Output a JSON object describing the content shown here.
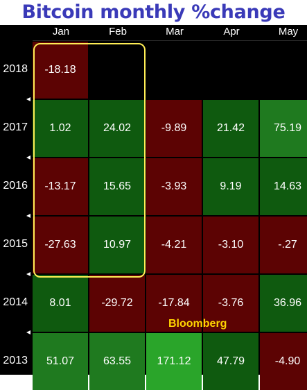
{
  "chart_data": {
    "type": "heatmap",
    "title": "Bitcoin monthly %change",
    "columns": [
      "Jan",
      "Feb",
      "Mar",
      "Apr",
      "May"
    ],
    "rows": [
      "2018",
      "2017",
      "2016",
      "2015",
      "2014",
      "2013"
    ],
    "values": [
      [
        "-18.18",
        null,
        null,
        null,
        null
      ],
      [
        "1.02",
        "24.02",
        "-9.89",
        "21.42",
        "75.19"
      ],
      [
        "-13.17",
        "15.65",
        "-3.93",
        "9.19",
        "14.63"
      ],
      [
        "-27.63",
        "10.97",
        "-4.21",
        "-3.10",
        "-.27"
      ],
      [
        "8.01",
        "-29.72",
        "-17.84",
        "-3.76",
        "36.96"
      ],
      [
        "51.07",
        "63.55",
        "171.12",
        "47.79",
        "-4.90"
      ]
    ],
    "colors": {
      "positive_dark": "#0f5a0f",
      "positive_bright": "#2aa52a",
      "negative": "#5c0303",
      "background": "#000000",
      "highlight": "#ffee55",
      "title": "#3a3ab8",
      "watermark": "#ffd500"
    }
  },
  "watermark": "Bloomberg"
}
